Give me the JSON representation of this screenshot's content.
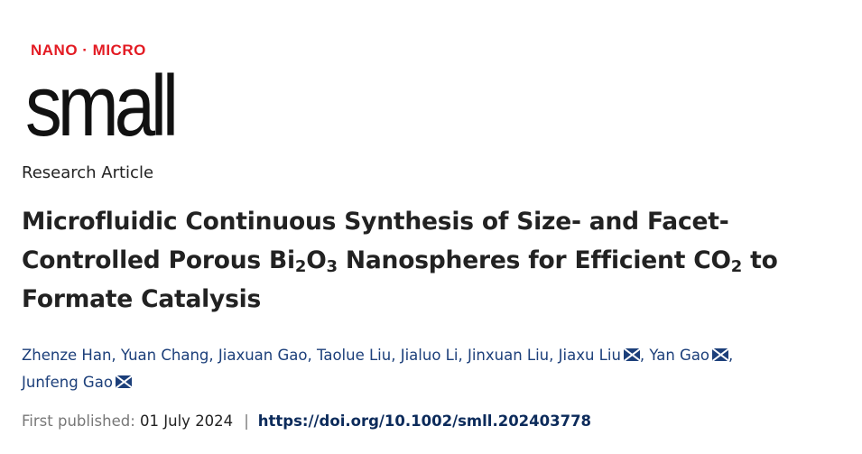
{
  "logo": {
    "top": "NANO · MICRO",
    "main": "small",
    "accent_color": "#e31b23"
  },
  "article_type": "Research Article",
  "title": {
    "line1": "Microfluidic Continuous Synthesis of Size- and Facet-",
    "line2a": "Controlled Porous Bi",
    "sub1": "2",
    "line2b": "O",
    "sub2": "3",
    "line2c": " Nanospheres for Efficient CO",
    "sub3": "2",
    "line2d": " to",
    "line3": "Formate Catalysis"
  },
  "authors": [
    {
      "name": "Zhenze Han",
      "corresponding": false
    },
    {
      "name": "Yuan Chang",
      "corresponding": false
    },
    {
      "name": "Jiaxuan Gao",
      "corresponding": false
    },
    {
      "name": "Taolue Liu",
      "corresponding": false
    },
    {
      "name": "Jialuo Li",
      "corresponding": false
    },
    {
      "name": "Jinxuan Liu",
      "corresponding": false
    },
    {
      "name": "Jiaxu Liu",
      "corresponding": true
    },
    {
      "name": "Yan Gao",
      "corresponding": true
    },
    {
      "name": "Junfeng Gao",
      "corresponding": true
    }
  ],
  "publication": {
    "label": "First published:",
    "date": "01 July 2024",
    "separator": "|",
    "doi": "https://doi.org/10.1002/smll.202403778"
  },
  "colors": {
    "author_link": "#1c3f7a",
    "doi": "#0c2b5b"
  }
}
